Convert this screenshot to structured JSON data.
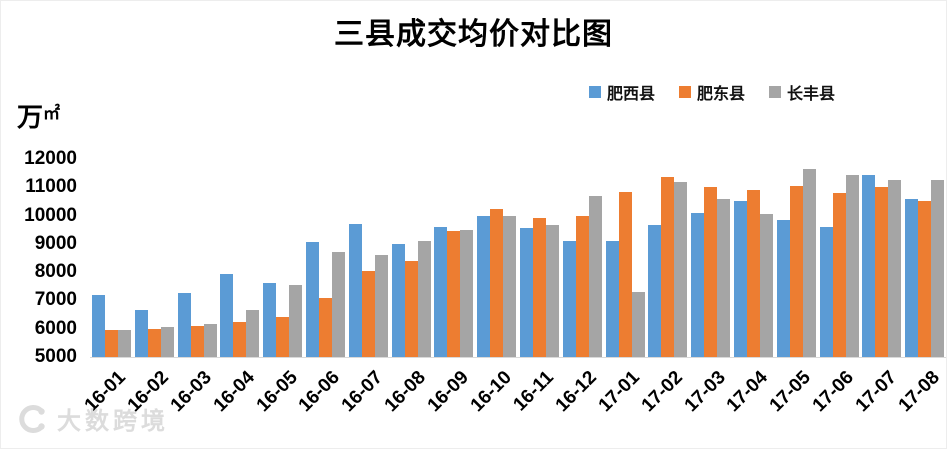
{
  "title": "三县成交均价对比图",
  "y_axis_unit": {
    "main": "万",
    "sub": "㎡"
  },
  "watermark": {
    "text": "大数跨境"
  },
  "chart_data": {
    "type": "bar",
    "title": "三县成交均价对比图",
    "ylabel": "万㎡",
    "xlabel": "",
    "ylim": [
      5000,
      12000
    ],
    "yticks": [
      5000,
      6000,
      7000,
      8000,
      9000,
      10000,
      11000,
      12000
    ],
    "grid": false,
    "legend_position": "top-right",
    "categories": [
      "16-01",
      "16-02",
      "16-03",
      "16-04",
      "16-05",
      "16-06",
      "16-07",
      "16-08",
      "16-09",
      "16-10",
      "16-11",
      "16-12",
      "17-01",
      "17-02",
      "17-03",
      "17-04",
      "17-05",
      "17-06",
      "17-07",
      "17-08"
    ],
    "series": [
      {
        "name": "肥西县",
        "color": "#5B9BD5",
        "values": [
          7200,
          6650,
          7250,
          7950,
          7600,
          9050,
          9700,
          9000,
          9600,
          10000,
          9550,
          9100,
          9100,
          9650,
          10100,
          10500,
          9850,
          9600,
          11450,
          10600
        ]
      },
      {
        "name": "肥东县",
        "color": "#ED7D31",
        "values": [
          5950,
          6000,
          6100,
          6250,
          6400,
          7100,
          8050,
          8400,
          9450,
          10250,
          9900,
          10000,
          10850,
          11350,
          11000,
          10900,
          11050,
          10800,
          11000,
          10500
        ]
      },
      {
        "name": "长丰县",
        "color": "#A5A5A5",
        "values": [
          5950,
          6050,
          6150,
          6650,
          7550,
          8700,
          8600,
          9100,
          9500,
          10000,
          9650,
          10700,
          7300,
          11200,
          10600,
          10050,
          11650,
          11450,
          11250,
          11250
        ]
      }
    ]
  }
}
